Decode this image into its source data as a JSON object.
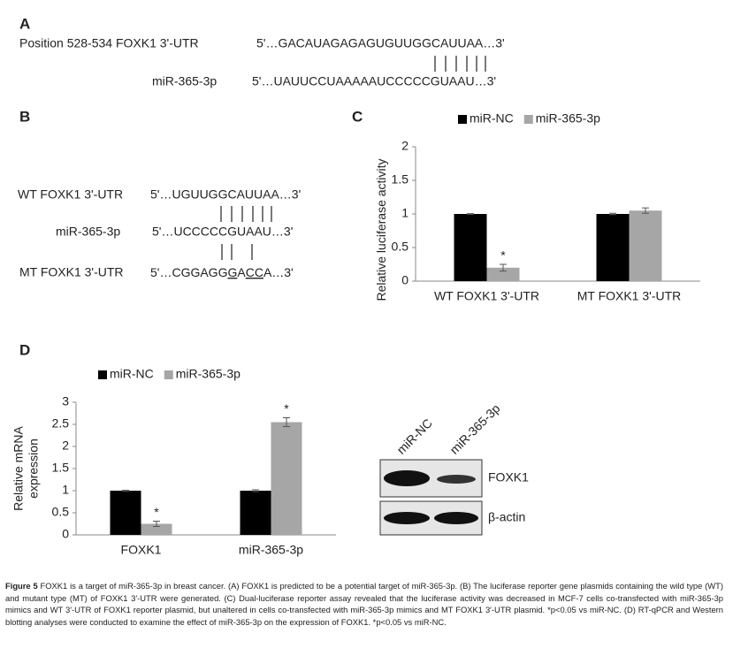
{
  "panel_a": {
    "label": "A",
    "target_name": "Position 528-534 FOXK1 3'-UTR",
    "target_seq": "5'…GACAUAGAGAGUGUUGGCAUUAA…3'",
    "mirna_name": "miR-365-3p",
    "mirna_seq": "5'…UAUUCCUAAAAAUCCCCCGUAAU…3'"
  },
  "panel_b": {
    "label": "B",
    "wt_name": "WT FOXK1 3'-UTR",
    "wt_seq": "5'…UGUUGGCAUUAA…3'",
    "mirna_name": "miR-365-3p",
    "mirna_seq": "5'…UCCCCCGUAAU…3'",
    "mt_name": "MT FOXK1 3'-UTR",
    "mt_seq_parts": [
      "5'…CGGAGG",
      "G",
      "A",
      "CC",
      "A…3'"
    ],
    "mt_seq_underlined": [
      false,
      true,
      false,
      true,
      false
    ]
  },
  "panel_c": {
    "label": "C"
  },
  "panel_d": {
    "label": "D",
    "blot_lanes": [
      "miR-NC",
      "miR-365-3p"
    ],
    "blot_rows": [
      "FOXK1",
      "β-actin"
    ]
  },
  "chart_data": [
    {
      "type": "bar",
      "ylabel": [
        "Relative luciferase activity"
      ],
      "categories": [
        "WT FOXK1 3'-UTR",
        "MT FOXK1 3'-UTR"
      ],
      "series": [
        {
          "name": "miR-NC",
          "color": "#000000",
          "values": [
            1,
            1
          ],
          "errors": [
            0.005,
            0.01
          ],
          "annotations": [
            null,
            null
          ]
        },
        {
          "name": "miR-365-3p",
          "color": "#a6a6a6",
          "values": [
            0.2,
            1.05
          ],
          "errors": [
            0.05,
            0.04
          ],
          "annotations": [
            "*",
            null
          ]
        }
      ],
      "ylim": [
        0,
        2
      ],
      "yticks": [
        0,
        0.5,
        1,
        1.5,
        2
      ],
      "legend": "top"
    },
    {
      "type": "bar",
      "ylabel": [
        "Relative mRNA",
        "expression"
      ],
      "categories": [
        "FOXK1",
        "miR-365-3p"
      ],
      "series": [
        {
          "name": "miR-NC",
          "color": "#000000",
          "values": [
            1,
            1
          ],
          "errors": [
            0.01,
            0.02
          ],
          "annotations": [
            null,
            null
          ]
        },
        {
          "name": "miR-365-3p",
          "color": "#a6a6a6",
          "values": [
            0.25,
            2.55
          ],
          "errors": [
            0.06,
            0.1
          ],
          "annotations": [
            "*",
            "*"
          ]
        }
      ],
      "ylim": [
        0,
        3
      ],
      "yticks": [
        0,
        0.5,
        1,
        1.5,
        2,
        2.5,
        3
      ],
      "legend": "top"
    }
  ],
  "caption": {
    "label": "Figure 5",
    "text": "FOXK1 is a target of miR-365-3p in breast cancer. (A) FOXK1 is predicted to be a potential target of miR-365-3p. (B) The luciferase reporter gene plasmids containing the wild type (WT) and mutant type (MT) of FOXK1 3′-UTR were generated. (C) Dual-luciferase reporter assay revealed that the luciferase activity was decreased in MCF-7 cells co-transfected with miR-365-3p mimics and WT 3′-UTR of FOXK1 reporter plasmid, but unaltered in cells co-transfected with miR-365-3p mimics and MT FOXK1 3′-UTR plasmid. *p<0.05 vs miR-NC. (D) RT-qPCR and Western blotting analyses were conducted to examine the effect of miR-365-3p on the expression of FOXK1. *p<0.05 vs miR-NC."
  }
}
